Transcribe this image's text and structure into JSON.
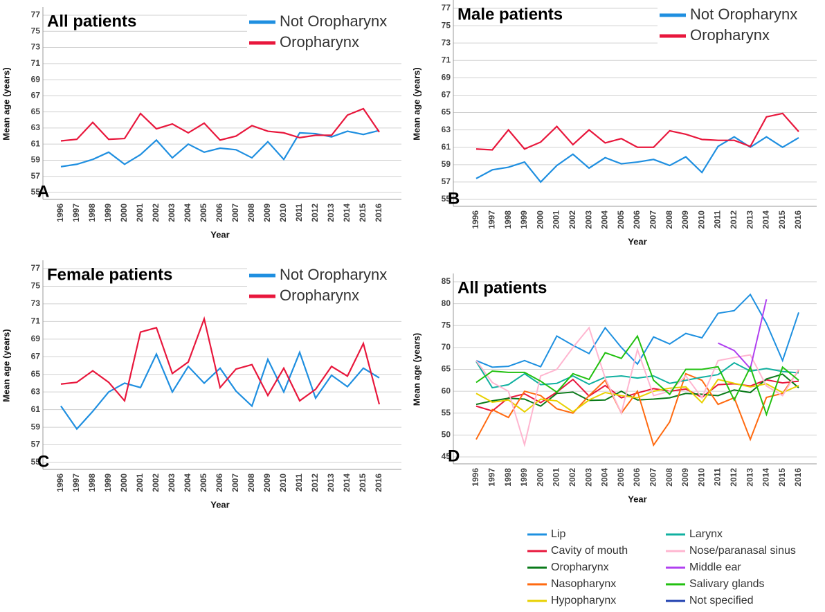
{
  "chart_data": [
    {
      "type": "line",
      "title": "All patients",
      "panel_label": "A",
      "x_label": "Year",
      "y_label": "Mean age (years)",
      "categories": [
        "1996",
        "1997",
        "1998",
        "1999",
        "2000",
        "2001",
        "2002",
        "2003",
        "2004",
        "2005",
        "2006",
        "2007",
        "2008",
        "2009",
        "2010",
        "2011",
        "2012",
        "2013",
        "2014",
        "2015",
        "2016"
      ],
      "series": [
        {
          "name": "Not Oropharynx",
          "color": "#1f8fe0",
          "values": [
            58.2,
            58.5,
            59.1,
            60,
            58.5,
            59.7,
            61.5,
            59.3,
            61,
            60,
            60.5,
            60.3,
            59.3,
            61.3,
            59.1,
            62.4,
            62.3,
            61.9,
            62.6,
            62.2,
            62.7
          ]
        },
        {
          "name": "Oropharynx",
          "color": "#e8173c",
          "values": [
            61.4,
            61.6,
            63.7,
            61.6,
            61.7,
            64.8,
            62.9,
            63.5,
            62.4,
            63.6,
            61.5,
            62,
            63.3,
            62.6,
            62.4,
            61.8,
            62.1,
            62.1,
            64.6,
            65.4,
            62.5
          ]
        }
      ],
      "ylim": [
        55,
        77
      ],
      "yticks": [
        55,
        57,
        59,
        61,
        63,
        65,
        67,
        69,
        71,
        73,
        75,
        77
      ],
      "grid": true,
      "legend_position": "upper right"
    },
    {
      "type": "line",
      "title": "Male patients",
      "panel_label": "B",
      "x_label": "Year",
      "y_label": "Mean age (years)",
      "categories": [
        "1996",
        "1997",
        "1998",
        "1999",
        "2000",
        "2001",
        "2002",
        "2003",
        "2004",
        "2005",
        "2006",
        "2007",
        "2008",
        "2009",
        "2010",
        "2011",
        "2012",
        "2013",
        "2014",
        "2015",
        "2016"
      ],
      "series": [
        {
          "name": "Not Oropharynx",
          "color": "#1f8fe0",
          "values": [
            57.4,
            58.4,
            58.7,
            59.3,
            57,
            58.9,
            60.2,
            58.6,
            59.8,
            59.1,
            59.3,
            59.6,
            58.9,
            59.9,
            58.1,
            61.1,
            62.2,
            61,
            62.2,
            61,
            62.1
          ]
        },
        {
          "name": "Oropharynx",
          "color": "#e8173c",
          "values": [
            60.8,
            60.7,
            63,
            60.8,
            61.6,
            63.4,
            61.3,
            63,
            61.5,
            62,
            61,
            61,
            62.9,
            62.5,
            61.9,
            61.8,
            61.8,
            61.1,
            64.5,
            64.9,
            62.8
          ]
        }
      ],
      "ylim": [
        55,
        77
      ],
      "yticks": [
        55,
        57,
        59,
        61,
        63,
        65,
        67,
        69,
        71,
        73,
        75,
        77
      ],
      "grid": true,
      "legend_position": "upper right"
    },
    {
      "type": "line",
      "title": "Female patients",
      "panel_label": "C",
      "x_label": "Year",
      "y_label": "Mean age (years)",
      "categories": [
        "1996",
        "1997",
        "1998",
        "1999",
        "2000",
        "2001",
        "2002",
        "2003",
        "2004",
        "2005",
        "2006",
        "2007",
        "2008",
        "2009",
        "2010",
        "2011",
        "2012",
        "2013",
        "2014",
        "2015",
        "2016"
      ],
      "series": [
        {
          "name": "Not Oropharynx",
          "color": "#1f8fe0",
          "values": [
            61.4,
            58.8,
            60.8,
            63,
            64,
            63.5,
            67.3,
            63,
            65.9,
            64,
            65.7,
            63.1,
            61.4,
            66.7,
            63,
            67.5,
            62.3,
            64.9,
            63.6,
            65.7,
            64.6
          ]
        },
        {
          "name": "Oropharynx",
          "color": "#e8173c",
          "values": [
            63.9,
            64.1,
            65.4,
            64.1,
            62,
            69.8,
            70.3,
            65.1,
            66.4,
            71.3,
            63.5,
            65.6,
            66.1,
            62.6,
            65.7,
            62,
            63.3,
            65.9,
            64.8,
            68.5,
            61.6
          ]
        }
      ],
      "ylim": [
        55,
        77
      ],
      "yticks": [
        55,
        57,
        59,
        61,
        63,
        65,
        67,
        69,
        71,
        73,
        75,
        77
      ],
      "grid": true,
      "legend_position": "upper right"
    },
    {
      "type": "line",
      "title": "All patients",
      "panel_label": "D",
      "x_label": "Year",
      "y_label": "Mean age (years)",
      "categories": [
        "1996",
        "1997",
        "1998",
        "1999",
        "2000",
        "2001",
        "2002",
        "2003",
        "2004",
        "2005",
        "2006",
        "2007",
        "2008",
        "2009",
        "2010",
        "2011",
        "2012",
        "2013",
        "2014",
        "2015",
        "2016"
      ],
      "series": [
        {
          "name": "Lip",
          "color": "#1e90e0",
          "values": [
            67,
            65.5,
            65.7,
            67,
            65.6,
            72.6,
            70.5,
            68.6,
            74.5,
            70,
            66.2,
            72.4,
            70.8,
            73.2,
            72.2,
            77.8,
            78.4,
            82.1,
            75.5,
            67,
            78
          ]
        },
        {
          "name": "Cavity of mouth",
          "color": "#e8173c",
          "values": [
            56.6,
            55.5,
            58.5,
            59.4,
            57.4,
            59.8,
            62.7,
            58.9,
            61.3,
            58.5,
            59.6,
            60.6,
            60,
            60.5,
            58.6,
            61.5,
            61.7,
            61.2,
            62.6,
            61.9,
            62.3
          ]
        },
        {
          "name": "Oropharynx",
          "color": "#0a7a1a",
          "values": [
            57,
            57.8,
            58.4,
            58.2,
            56.6,
            59.5,
            59.8,
            57.9,
            58,
            60,
            58,
            58.2,
            58.5,
            59.5,
            59.3,
            59,
            60.3,
            59.7,
            62.8,
            63.9,
            60.8
          ]
        },
        {
          "name": "Nasopharynx",
          "color": "#ff6a10",
          "values": [
            49,
            55.8,
            54,
            60,
            59,
            56,
            55,
            59,
            62.5,
            55,
            60,
            47.7,
            53,
            64,
            62.5,
            57,
            58.5,
            49,
            58.6,
            59.5,
            64.8
          ]
        },
        {
          "name": "Hypopharynx",
          "color": "#e8d000",
          "values": [
            59.5,
            57.5,
            58,
            55.3,
            58.2,
            57.8,
            55.3,
            58,
            59.7,
            59,
            58.5,
            60,
            60.7,
            61,
            57.4,
            62.7,
            61.8,
            61,
            61.7,
            59.7,
            61.3
          ]
        },
        {
          "name": "Larynx",
          "color": "#10b0a0",
          "values": [
            66.8,
            60.8,
            61.5,
            64,
            61.5,
            61.8,
            63.5,
            61.6,
            63.2,
            63.5,
            63,
            63.5,
            61.8,
            62.5,
            63.2,
            63.8,
            66.5,
            64.6,
            65.2,
            64.5,
            64.2
          ]
        },
        {
          "name": "Nose/paranasal sinus",
          "color": "#ffb6d0",
          "values": [
            67,
            62,
            60,
            47.8,
            63.5,
            65,
            70,
            74.5,
            63,
            55,
            69.5,
            59,
            60,
            63.5,
            58.5,
            67,
            67.7,
            68.3,
            61.2,
            59,
            65
          ]
        },
        {
          "name": "Middle ear",
          "color": "#b040f0",
          "values": [
            null,
            null,
            null,
            null,
            null,
            null,
            null,
            null,
            null,
            null,
            null,
            null,
            null,
            null,
            null,
            71,
            69.3,
            65.2,
            81,
            null,
            null
          ]
        },
        {
          "name": "Salivary glands",
          "color": "#22c010",
          "values": [
            62,
            64.6,
            64.3,
            64.3,
            62.3,
            59.8,
            64,
            62.7,
            68.8,
            67.5,
            72.6,
            62.5,
            59.3,
            65,
            65,
            65.6,
            58,
            65.5,
            54.7,
            65.5,
            62.5
          ]
        },
        {
          "name": "Not specified",
          "color": "#2040b0",
          "values": [
            null,
            null,
            null,
            null,
            null,
            null,
            null,
            null,
            null,
            null,
            null,
            null,
            null,
            null,
            null,
            null,
            null,
            null,
            null,
            null,
            null
          ]
        }
      ],
      "ylim": [
        45,
        85
      ],
      "yticks": [
        45,
        50,
        55,
        60,
        65,
        70,
        75,
        80,
        85
      ],
      "grid": true,
      "legend_position": "below"
    }
  ]
}
